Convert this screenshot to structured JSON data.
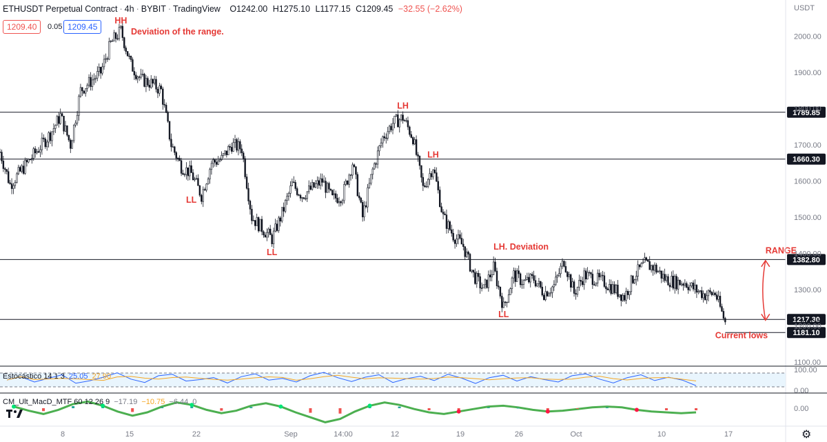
{
  "header": {
    "symbol": "ETHUSDT Perpetual Contract",
    "interval": "4h",
    "exchange": "BYBIT",
    "source": "TradingView",
    "open_label": "O",
    "open": "1242.00",
    "high_label": "H",
    "high": "1275.10",
    "low_label": "L",
    "low": "1177.15",
    "close_label": "C",
    "close": "1209.45",
    "change": "−32.55 (−2.62%)",
    "bid": "1209.40",
    "spread": "0.05",
    "ask": "1209.45",
    "currency": "USDT"
  },
  "colors": {
    "up": "#131722",
    "down": "#131722",
    "annotation": "#e53935",
    "level_line": "#131722",
    "stoch_k": "#2962ff",
    "stoch_d": "#f5a623",
    "grid_text": "#787b86"
  },
  "icons": {
    "logo": "tradingview-logo-icon",
    "settings": "gear-icon"
  },
  "indicators": {
    "stoch": {
      "name": "Estocástico",
      "params": "14 1 3",
      "k": "25.05",
      "d": "27.90",
      "ticks": [
        "100.00",
        "0.00"
      ],
      "k_values": [
        48,
        62,
        40,
        55,
        70,
        35,
        45,
        60,
        78,
        52,
        38,
        66,
        72,
        44,
        50,
        58,
        36,
        62,
        74,
        48,
        55,
        40,
        66,
        80,
        58,
        42,
        60,
        70,
        38,
        54,
        64,
        46,
        72,
        56,
        34,
        58,
        68,
        44,
        62,
        50,
        40,
        66,
        74,
        52,
        36,
        58,
        70,
        46,
        60,
        48,
        25
      ]
    },
    "macd": {
      "name": "CM_Ult_MacD_MTF",
      "params": "60 12 26 9",
      "v1": "−17.19",
      "v2": "−10.75",
      "v3": "−6.44",
      "v4": "0",
      "ticks": [
        "0.00"
      ],
      "values": [
        4,
        -6,
        -14,
        -4,
        10,
        16,
        6,
        -8,
        -18,
        -10,
        4,
        14,
        8,
        -4,
        -12,
        -6,
        6,
        12,
        4,
        -10,
        -22,
        -34,
        -26,
        -8,
        6,
        14,
        8,
        -2,
        -10,
        -14,
        -8,
        -2,
        4,
        6,
        2,
        -4,
        -8,
        -6,
        -2,
        2,
        4,
        2,
        -4,
        -8,
        -10,
        -12,
        -10
      ]
    }
  },
  "chart_data": {
    "type": "candlestick",
    "title": "ETHUSDT Perpetual Contract · 4h · BYBIT",
    "y_axis": {
      "ticks": [
        2000,
        1900,
        1800,
        1700,
        1600,
        1500,
        1400,
        1300,
        1200,
        1100
      ],
      "tick_labels": [
        "2000.00",
        "1900.00",
        "1800.00",
        "1700.00",
        "1600.00",
        "1500.00",
        "1400.00",
        "1300.00",
        "1200.00",
        "1100.00"
      ],
      "range": [
        1090,
        2100
      ]
    },
    "x_axis": {
      "tick_labels": [
        "8",
        "15",
        "22",
        "Sep",
        "14:00",
        "12",
        "19",
        "26",
        "Oct",
        "10",
        "17"
      ],
      "range": [
        "2022-08-02",
        "2022-10-19"
      ]
    },
    "price_path": [
      [
        "2022-08-02",
        1680
      ],
      [
        "2022-08-03",
        1590
      ],
      [
        "2022-08-05",
        1660
      ],
      [
        "2022-08-07",
        1730
      ],
      [
        "2022-08-08",
        1780
      ],
      [
        "2022-08-09",
        1700
      ],
      [
        "2022-08-10",
        1850
      ],
      [
        "2022-08-12",
        1900
      ],
      [
        "2022-08-13",
        1980
      ],
      [
        "2022-08-14",
        2015
      ],
      [
        "2022-08-15",
        1920
      ],
      [
        "2022-08-16",
        1880
      ],
      [
        "2022-08-17",
        1870
      ],
      [
        "2022-08-18",
        1850
      ],
      [
        "2022-08-19",
        1700
      ],
      [
        "2022-08-20",
        1640
      ],
      [
        "2022-08-21",
        1620
      ],
      [
        "2022-08-22",
        1560
      ],
      [
        "2022-08-23",
        1650
      ],
      [
        "2022-08-24",
        1660
      ],
      [
        "2022-08-25",
        1700
      ],
      [
        "2022-08-26",
        1690
      ],
      [
        "2022-08-27",
        1500
      ],
      [
        "2022-08-28",
        1470
      ],
      [
        "2022-08-29",
        1440
      ],
      [
        "2022-08-30",
        1510
      ],
      [
        "2022-08-31",
        1590
      ],
      [
        "2022-09-01",
        1560
      ],
      [
        "2022-09-02",
        1580
      ],
      [
        "2022-09-03",
        1600
      ],
      [
        "2022-09-04",
        1550
      ],
      [
        "2022-09-05",
        1560
      ],
      [
        "2022-09-06",
        1650
      ],
      [
        "2022-09-07",
        1500
      ],
      [
        "2022-09-08",
        1630
      ],
      [
        "2022-09-09",
        1720
      ],
      [
        "2022-09-10",
        1760
      ],
      [
        "2022-09-11",
        1775
      ],
      [
        "2022-09-12",
        1720
      ],
      [
        "2022-09-13",
        1580
      ],
      [
        "2022-09-14",
        1640
      ],
      [
        "2022-09-15",
        1500
      ],
      [
        "2022-09-16",
        1450
      ],
      [
        "2022-09-17",
        1420
      ],
      [
        "2022-09-18",
        1340
      ],
      [
        "2022-09-19",
        1300
      ],
      [
        "2022-09-20",
        1360
      ],
      [
        "2022-09-21",
        1250
      ],
      [
        "2022-09-22",
        1340
      ],
      [
        "2022-09-23",
        1320
      ],
      [
        "2022-09-24",
        1330
      ],
      [
        "2022-09-25",
        1290
      ],
      [
        "2022-09-26",
        1310
      ],
      [
        "2022-09-27",
        1380
      ],
      [
        "2022-09-28",
        1290
      ],
      [
        "2022-09-29",
        1340
      ],
      [
        "2022-09-30",
        1330
      ],
      [
        "2022-10-01",
        1320
      ],
      [
        "2022-10-02",
        1300
      ],
      [
        "2022-10-03",
        1280
      ],
      [
        "2022-10-04",
        1340
      ],
      [
        "2022-10-05",
        1370
      ],
      [
        "2022-10-06",
        1360
      ],
      [
        "2022-10-07",
        1330
      ],
      [
        "2022-10-08",
        1320
      ],
      [
        "2022-10-09",
        1320
      ],
      [
        "2022-10-10",
        1300
      ],
      [
        "2022-10-11",
        1285
      ],
      [
        "2022-10-12",
        1290
      ],
      [
        "2022-10-13",
        1209
      ]
    ],
    "levels": [
      {
        "value": 1789.85,
        "label": "1789.85",
        "start": "2022-08-01"
      },
      {
        "value": 1660.3,
        "label": "1660.30",
        "start": "2022-08-01"
      },
      {
        "value": 1382.8,
        "label": "1382.80",
        "start": "2022-08-01"
      },
      {
        "value": 1217.3,
        "label": "1217.30",
        "start": "2022-08-01"
      },
      {
        "value": 1181.1,
        "label": "1181.10",
        "start": "2022-10-13"
      }
    ],
    "last_price": {
      "value": 1209.45,
      "label": "1209.45"
    },
    "annotations": [
      {
        "text": "HH",
        "date": "2022-08-14",
        "price": 2035
      },
      {
        "text": "Deviation of the range.",
        "date": "2022-08-15",
        "price": 2005
      },
      {
        "text": "LL",
        "date": "2022-08-21",
        "price": 1540
      },
      {
        "text": "LL",
        "date": "2022-08-29",
        "price": 1395
      },
      {
        "text": "LH",
        "date": "2022-09-11",
        "price": 1800
      },
      {
        "text": "LH",
        "date": "2022-09-14",
        "price": 1665
      },
      {
        "text": "LH. Deviation",
        "date": "2022-09-20",
        "price": 1410
      },
      {
        "text": "LL",
        "date": "2022-09-21",
        "price": 1223
      },
      {
        "text": "RANGE",
        "date": "2022-10-17",
        "price": 1400
      },
      {
        "text": "Current lows",
        "date": "2022-10-12",
        "price": 1165
      }
    ],
    "range_arrow": {
      "date": "2022-10-17",
      "from": 1215,
      "to": 1380
    }
  }
}
